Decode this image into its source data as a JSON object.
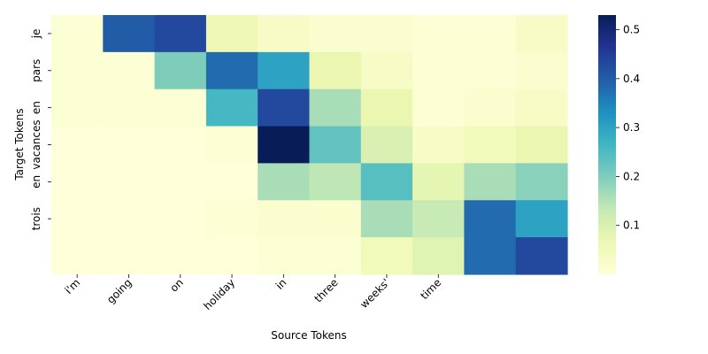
{
  "chart_data": {
    "type": "heatmap",
    "title": "",
    "xlabel": "Source Tokens",
    "ylabel": "Target Tokens",
    "x_tick_labels": [
      "i'm",
      "going",
      "on",
      "holiday",
      "in",
      "three",
      "weeks'",
      "time",
      "",
      ""
    ],
    "y_tick_labels": [
      "je",
      "pars",
      "en",
      "vacances",
      "en",
      "trois",
      ""
    ],
    "colormap": "YlGnBu",
    "colorbar": {
      "min": 0.0,
      "max": 0.53,
      "ticks": [
        0.1,
        0.2,
        0.3,
        0.4,
        0.5
      ],
      "tick_labels": [
        "0.1",
        "0.2",
        "0.3",
        "0.4",
        "0.5"
      ]
    },
    "values": [
      [
        0.01,
        0.4,
        0.43,
        0.06,
        0.03,
        0.02,
        0.02,
        0.01,
        0.01,
        0.03
      ],
      [
        0.01,
        0.01,
        0.2,
        0.38,
        0.3,
        0.07,
        0.03,
        0.01,
        0.01,
        0.02
      ],
      [
        0.01,
        0.01,
        0.01,
        0.26,
        0.43,
        0.16,
        0.07,
        0.01,
        0.02,
        0.03
      ],
      [
        0.0,
        0.0,
        0.0,
        0.01,
        0.53,
        0.23,
        0.1,
        0.03,
        0.05,
        0.07
      ],
      [
        0.0,
        0.0,
        0.0,
        0.0,
        0.16,
        0.14,
        0.24,
        0.08,
        0.16,
        0.19
      ],
      [
        0.0,
        0.0,
        0.0,
        0.01,
        0.02,
        0.02,
        0.16,
        0.13,
        0.38,
        0.3
      ],
      [
        0.0,
        0.0,
        0.0,
        0.0,
        0.01,
        0.01,
        0.05,
        0.09,
        0.38,
        0.43
      ]
    ]
  }
}
